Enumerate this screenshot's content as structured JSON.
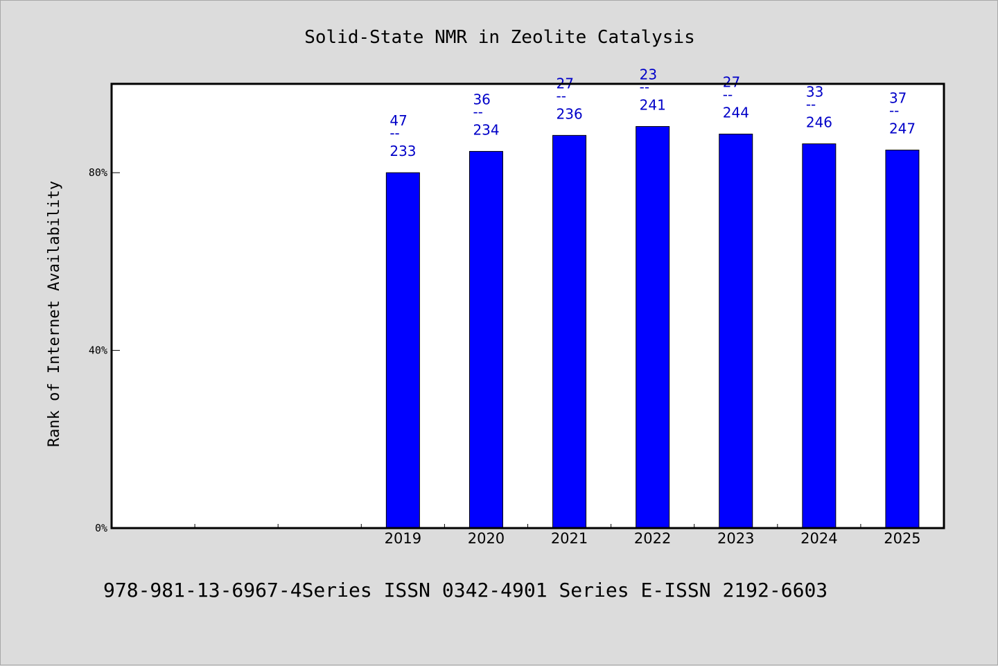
{
  "chart_data": {
    "type": "bar",
    "title": "Solid-State NMR in Zeolite Catalysis",
    "ylabel": "Rank of Internet Availability",
    "xlabel": "",
    "ylim": [
      0,
      100
    ],
    "yticks": [
      0,
      40,
      80
    ],
    "ytick_labels": [
      "0%",
      "40%",
      "80%"
    ],
    "slots": [
      "",
      "",
      "",
      "2019",
      "2020",
      "2021",
      "2022",
      "2023",
      "2024",
      "2025"
    ],
    "categories": [
      "2019",
      "2020",
      "2021",
      "2022",
      "2023",
      "2024",
      "2025"
    ],
    "values": [
      80,
      84.8,
      88.4,
      90.4,
      88.7,
      86.5,
      85.1
    ],
    "labels_top": [
      "47",
      "36",
      "27",
      "23",
      "27",
      "33",
      "37"
    ],
    "labels_sep": "--",
    "labels_bottom": [
      "233",
      "234",
      "236",
      "241",
      "244",
      "246",
      "247"
    ],
    "bar_color": "#0000ff",
    "label_color": "#0000c8",
    "grid": false,
    "legend": "none"
  },
  "footer": {
    "text": "978-981-13-6967-4Series ISSN 0342-4901 Series E-ISSN 2192-6603"
  }
}
